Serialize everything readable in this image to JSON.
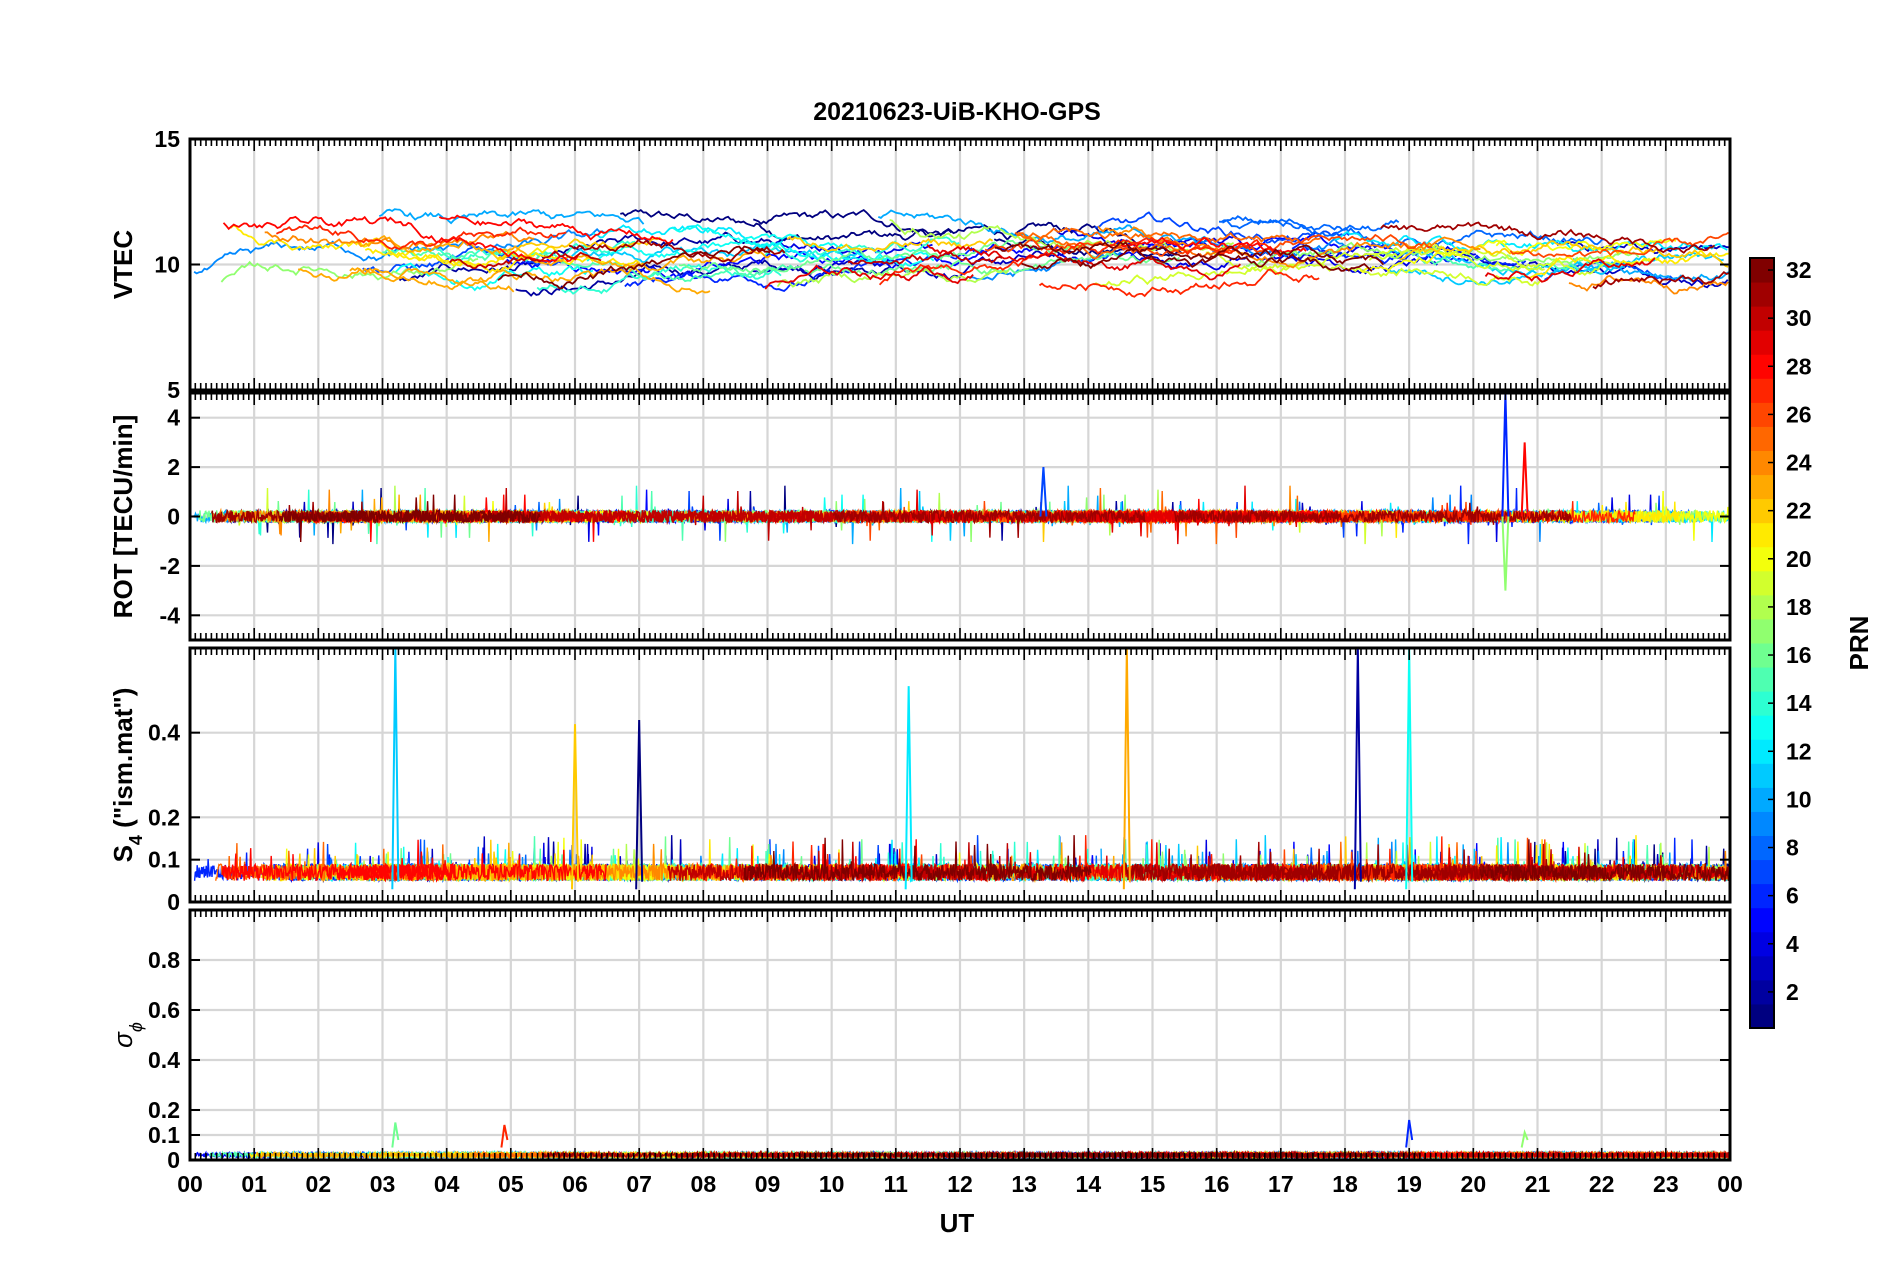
{
  "title": "20210623-UiB-KHO-GPS",
  "chart_data": [
    {
      "type": "line",
      "ylabel": "VTEC",
      "ylim": [
        5,
        15
      ],
      "yticks": [
        "5",
        "10",
        "15"
      ],
      "xlim": [
        0,
        24
      ],
      "grid": true,
      "description_of_series": "32 PRN traces, values mostly between 8 and 12.5 TECU"
    },
    {
      "type": "line",
      "ylabel": "ROT [TECU/min]",
      "ylim": [
        -5,
        5
      ],
      "yticks": [
        "-4",
        "-2",
        "0",
        "2",
        "4"
      ],
      "xlim": [
        0,
        24
      ],
      "grid": true,
      "notable_values": [
        {
          "x": 20.5,
          "y": 5
        },
        {
          "x": 20.5,
          "y": -3
        },
        {
          "x": 20.8,
          "y": 3
        },
        {
          "x": 13.3,
          "y": 2
        }
      ]
    },
    {
      "type": "line",
      "ylabel_main": "S",
      "ylabel_sub": "4",
      "ylabel_rest": " (\"ism.mat\")",
      "ylim": [
        0,
        0.6
      ],
      "yticks": [
        "0",
        "0.1",
        "0.2",
        "0.4"
      ],
      "xlim": [
        0,
        24
      ],
      "grid": true,
      "notable_values": [
        {
          "x": 3.2,
          "y": 0.6
        },
        {
          "x": 6.0,
          "y": 0.42
        },
        {
          "x": 7.0,
          "y": 0.43
        },
        {
          "x": 11.2,
          "y": 0.51
        },
        {
          "x": 14.6,
          "y": 0.6
        },
        {
          "x": 18.2,
          "y": 0.6
        },
        {
          "x": 19.0,
          "y": 0.6
        }
      ]
    },
    {
      "type": "line",
      "ylabel_main": "σ",
      "ylabel_sub": "ϕ",
      "ylim": [
        0,
        1
      ],
      "yticks": [
        "0",
        "0.1",
        "0.2",
        "0.4",
        "0.6",
        "0.8"
      ],
      "xlim": [
        0,
        24
      ],
      "grid": true,
      "notable_values": [
        {
          "x": 3.2,
          "y": 0.15
        },
        {
          "x": 4.9,
          "y": 0.14
        },
        {
          "x": 19.0,
          "y": 0.16
        },
        {
          "x": 20.8,
          "y": 0.11
        }
      ]
    }
  ],
  "xaxis": {
    "label": "UT",
    "ticks": [
      "00",
      "01",
      "02",
      "03",
      "04",
      "05",
      "06",
      "07",
      "08",
      "09",
      "10",
      "11",
      "12",
      "13",
      "14",
      "15",
      "16",
      "17",
      "18",
      "19",
      "20",
      "21",
      "22",
      "23",
      "00"
    ]
  },
  "colorbar": {
    "label": "PRN",
    "min": 1,
    "max": 32,
    "ticks": [
      "2",
      "4",
      "6",
      "8",
      "10",
      "12",
      "14",
      "16",
      "18",
      "20",
      "22",
      "24",
      "26",
      "28",
      "30",
      "32"
    ],
    "colormap": "jet"
  }
}
